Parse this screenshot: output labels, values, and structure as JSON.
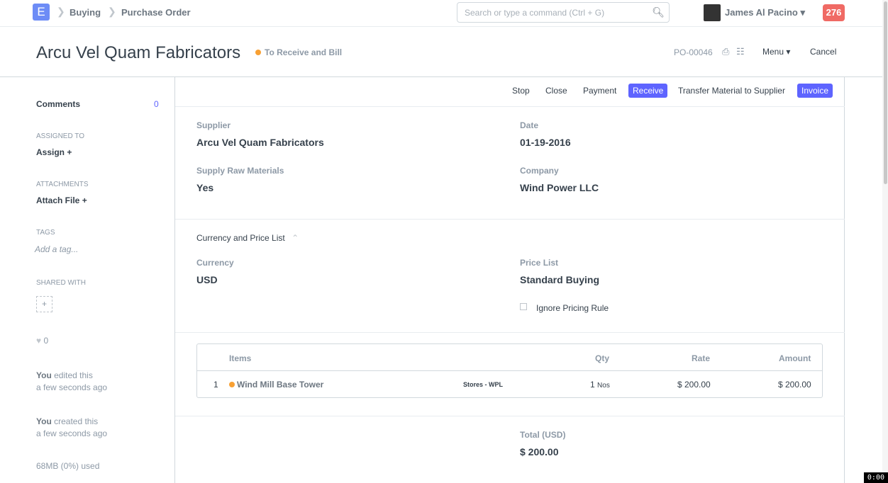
{
  "nav": {
    "logo": "E",
    "breadcrumbs": [
      "Buying",
      "Purchase Order"
    ],
    "search_placeholder": "Search or type a command (Ctrl + G)",
    "user": "James Al Pacino",
    "notifications": "276"
  },
  "header": {
    "title": "Arcu Vel Quam Fabricators",
    "status": "To Receive and Bill",
    "status_color": "#f8a033",
    "doc_id": "PO-00046",
    "menu": "Menu",
    "cancel": "Cancel"
  },
  "sidebar": {
    "comments": "Comments",
    "comments_count": "0",
    "assigned_to": "Assigned To",
    "assign": "Assign",
    "attachments": "Attachments",
    "attach_file": "Attach File",
    "tags": "Tags",
    "add_tag": "Add a tag...",
    "shared_with": "Shared With",
    "likes": "0",
    "activity": [
      {
        "who": "You",
        "action": " edited this",
        "when": "a few seconds ago"
      },
      {
        "who": "You",
        "action": " created this",
        "when": "a few seconds ago"
      }
    ],
    "usage": "68MB (0%) used"
  },
  "toolbar": {
    "stop": "Stop",
    "close": "Close",
    "payment": "Payment",
    "receive": "Receive",
    "transfer": "Transfer Material to Supplier",
    "invoice": "Invoice"
  },
  "form": {
    "supplier_label": "Supplier",
    "supplier": "Arcu Vel Quam Fabricators",
    "date_label": "Date",
    "date": "01-19-2016",
    "supply_raw_label": "Supply Raw Materials",
    "supply_raw": "Yes",
    "company_label": "Company",
    "company": "Wind Power LLC",
    "currency_section": "Currency and Price List",
    "currency_label": "Currency",
    "currency": "USD",
    "price_list_label": "Price List",
    "price_list": "Standard Buying",
    "ignore_pricing": "Ignore Pricing Rule",
    "total_label": "Total (USD)",
    "total": "$ 200.00"
  },
  "items": {
    "headers": {
      "items": "Items",
      "qty": "Qty",
      "rate": "Rate",
      "amount": "Amount"
    },
    "rows": [
      {
        "idx": "1",
        "item": "Wind Mill Base Tower",
        "warehouse": "Stores - WPL",
        "qty": "1",
        "uom": "Nos",
        "rate": "$ 200.00",
        "amount": "$ 200.00"
      }
    ]
  },
  "timer": "0:00"
}
